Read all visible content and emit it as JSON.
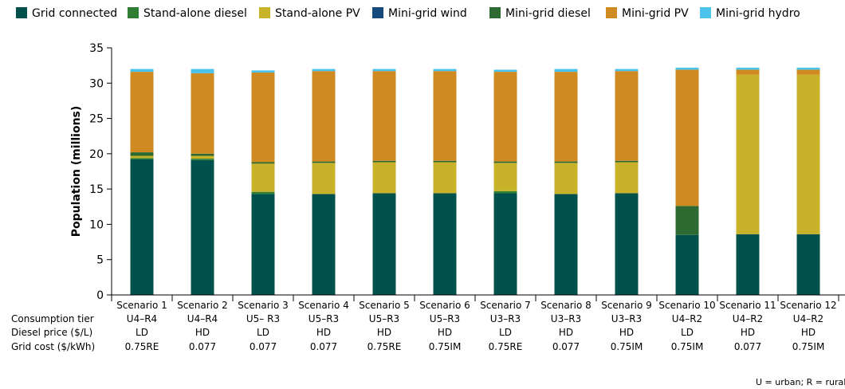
{
  "chart_data": {
    "type": "bar",
    "stacked": true,
    "ylabel": "Population (millions)",
    "ylim": [
      0,
      35
    ],
    "yticks": [
      0,
      5,
      10,
      15,
      20,
      25,
      30,
      35
    ],
    "grid": false,
    "legend_position": "top",
    "categories": [
      "Scenario 1",
      "Scenario 2",
      "Scenario 3",
      "Scenario 4",
      "Scenario 5",
      "Scenario 6",
      "Scenario 7",
      "Scenario 8",
      "Scenario 9",
      "Scenario 10",
      "Scenario 11",
      "Scenario 12"
    ],
    "series": [
      {
        "name": "Grid connected",
        "color": "#00504c",
        "values": [
          19.2,
          19.1,
          14.3,
          14.3,
          14.4,
          14.4,
          14.4,
          14.3,
          14.4,
          8.5,
          8.6,
          8.6
        ]
      },
      {
        "name": "Stand-alone diesel",
        "color": "#2e7d32",
        "values": [
          0.2,
          0.2,
          0.3,
          0,
          0,
          0,
          0.3,
          0,
          0,
          0,
          0,
          0
        ]
      },
      {
        "name": "Stand-alone PV",
        "color": "#c8b22a",
        "values": [
          0.3,
          0.4,
          4.0,
          4.4,
          4.4,
          4.4,
          4.0,
          4.4,
          4.4,
          0,
          22.6,
          22.6
        ]
      },
      {
        "name": "Mini-grid wind",
        "color": "#174a7c",
        "values": [
          0,
          0,
          0,
          0,
          0,
          0,
          0,
          0,
          0,
          0,
          0,
          0
        ]
      },
      {
        "name": "Mini-grid diesel",
        "color": "#2d6a31",
        "values": [
          0.5,
          0.3,
          0.2,
          0.2,
          0.2,
          0.2,
          0.2,
          0.2,
          0.2,
          4.1,
          0,
          0
        ]
      },
      {
        "name": "Mini-grid PV",
        "color": "#d08a22",
        "values": [
          11.4,
          11.4,
          12.7,
          12.8,
          12.7,
          12.7,
          12.7,
          12.7,
          12.7,
          19.3,
          0.7,
          0.7
        ]
      },
      {
        "name": "Mini-grid hydro",
        "color": "#4cc3ea",
        "values": [
          0.4,
          0.6,
          0.3,
          0.3,
          0.3,
          0.3,
          0.3,
          0.4,
          0.3,
          0.3,
          0.3,
          0.3
        ]
      }
    ],
    "table": {
      "row_labels": [
        "Consumption tier",
        "Diesel price ($/L)",
        "Grid cost ($/kWh)"
      ],
      "rows": [
        [
          "U4–R4",
          "U4–R4",
          "U5– R3",
          "U5–R3",
          "U5–R3",
          "U5–R3",
          "U3–R3",
          "U3–R3",
          "U3–R3",
          "U4–R2",
          "U4–R2",
          "U4–R2"
        ],
        [
          "LD",
          "HD",
          "LD",
          "HD",
          "HD",
          "HD",
          "LD",
          "HD",
          "HD",
          "LD",
          "HD",
          "HD"
        ],
        [
          "0.75RE",
          "0.077",
          "0.077",
          "0.077",
          "0.75RE",
          "0.75IM",
          "0.75RE",
          "0.077",
          "0.75IM",
          "0.75IM",
          "0.077",
          "0.75IM"
        ]
      ]
    },
    "footnote": "U = urban; R = rural"
  }
}
